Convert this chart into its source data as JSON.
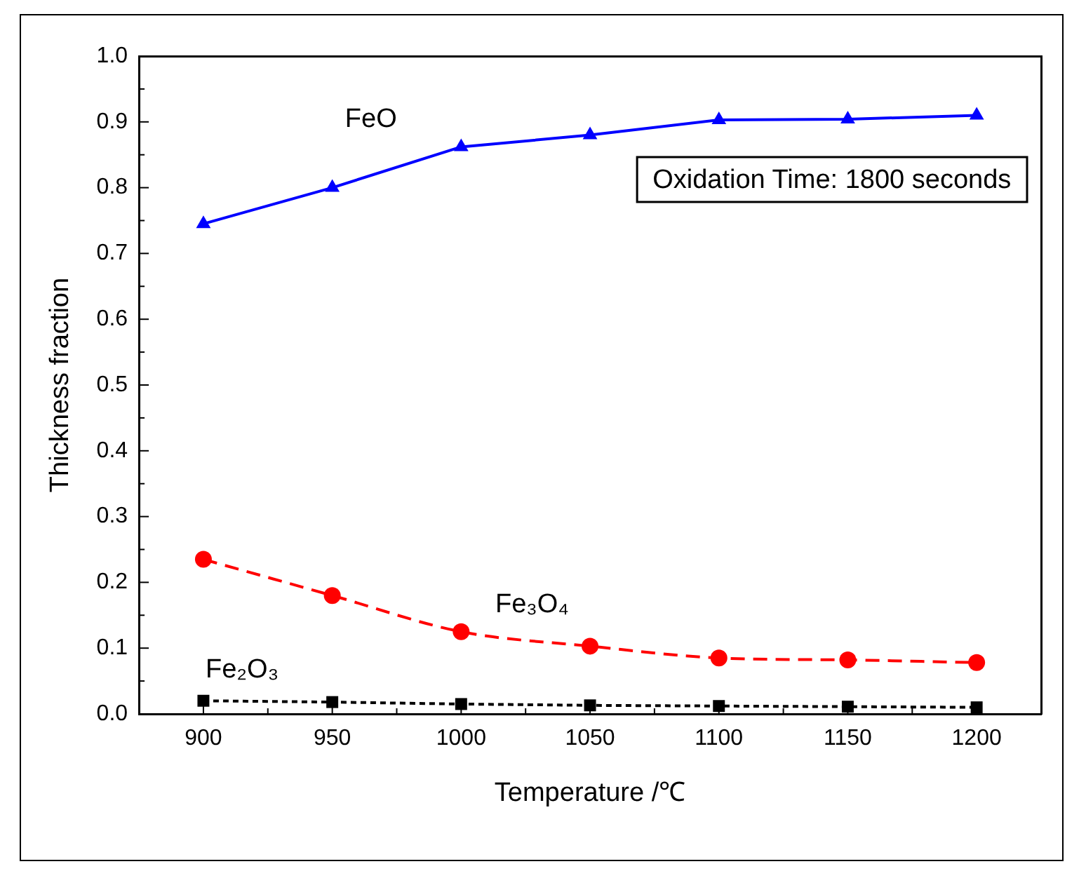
{
  "chart_data": {
    "type": "line",
    "xlabel": "Temperature /℃",
    "ylabel": "Thickness fraction",
    "x": [
      900,
      950,
      1000,
      1050,
      1100,
      1150,
      1200
    ],
    "series": [
      {
        "name": "FeO",
        "color": "#0000ff",
        "values": [
          0.745,
          0.8,
          0.862,
          0.88,
          0.903,
          0.904,
          0.91
        ],
        "marker": "triangle",
        "line_style": "solid"
      },
      {
        "name": "Fe₃O₄",
        "color": "#ff0000",
        "values": [
          0.235,
          0.18,
          0.125,
          0.103,
          0.085,
          0.082,
          0.078
        ],
        "marker": "circle",
        "line_style": "dashed"
      },
      {
        "name": "Fe₂O₃",
        "color": "#000000",
        "values": [
          0.02,
          0.018,
          0.015,
          0.013,
          0.012,
          0.011,
          0.01
        ],
        "marker": "square",
        "line_style": "dotted"
      }
    ],
    "xlim": [
      875,
      1225
    ],
    "xticks": [
      900,
      950,
      1000,
      1050,
      1100,
      1150,
      1200
    ],
    "ylim": [
      0,
      1
    ],
    "yticks": [
      {
        "value": 0,
        "label": "0.0"
      },
      0.1,
      0.2,
      0.3,
      0.4,
      0.5,
      0.6,
      0.7,
      0.8,
      0.9,
      {
        "value": 1,
        "label": "1.0"
      }
    ],
    "annotations": [
      "Oxidation Time: 1800 seconds"
    ],
    "legend": false,
    "grid": false
  }
}
